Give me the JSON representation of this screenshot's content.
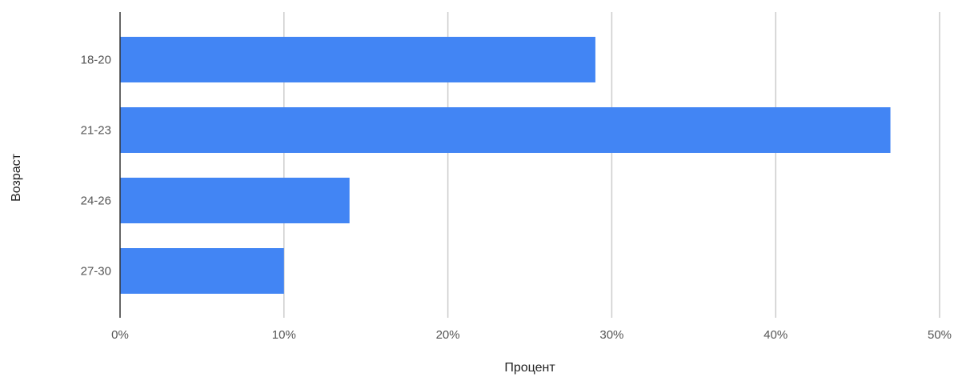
{
  "chart_data": {
    "type": "bar",
    "orientation": "horizontal",
    "categories": [
      "18-20",
      "21-23",
      "24-26",
      "27-30"
    ],
    "values": [
      29,
      47,
      14,
      10
    ],
    "xlabel": "Процент",
    "ylabel": "Возраст",
    "xlim": [
      0,
      50
    ],
    "xticks": [
      0,
      10,
      20,
      30,
      40,
      50
    ],
    "xtick_labels": [
      "0%",
      "10%",
      "20%",
      "30%",
      "40%",
      "50%"
    ],
    "grid": "vertical",
    "legend": "none",
    "colors": {
      "bar": "#4285f4",
      "grid": "#cccccc",
      "axis": "#333333"
    }
  }
}
